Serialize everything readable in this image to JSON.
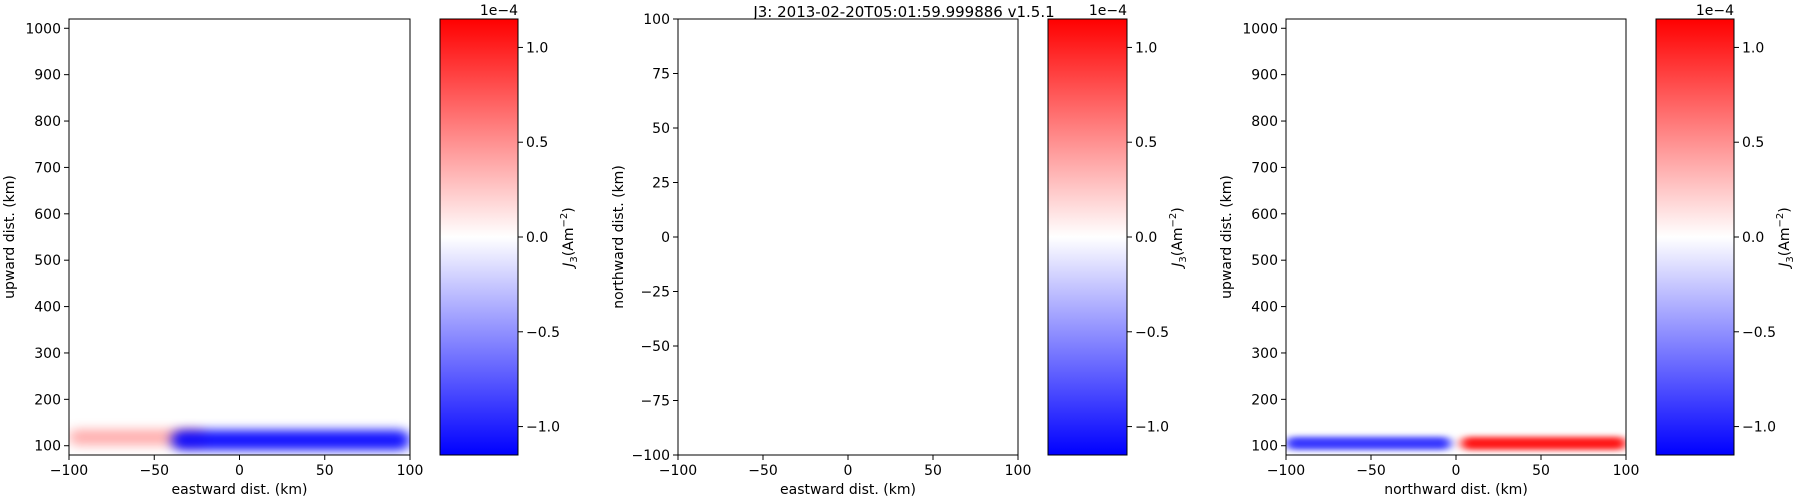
{
  "suptitle": "J3: 2013-02-20T05:01:59.999886  v1.5.1",
  "chart_data": [
    {
      "type": "heatmap",
      "xlabel": "eastward dist. (km)",
      "ylabel": "upward dist. (km)",
      "xlim": [
        -100,
        100
      ],
      "ylim": [
        80,
        1020
      ],
      "xticks": [
        -100,
        -50,
        0,
        50,
        100
      ],
      "yticks": [
        100,
        200,
        300,
        400,
        500,
        600,
        700,
        800,
        900,
        1000
      ],
      "colorbar": {
        "label": "J3(Am^-2)",
        "label_main": "J",
        "label_sub": "3",
        "label_paren": "(Am",
        "label_sup": "−2",
        "label_close": ")",
        "scale": "1e−4",
        "range": [
          -1.15,
          1.15
        ],
        "ticks": [
          "1.0",
          "0.5",
          "0.0",
          "−0.5",
          "−1.0"
        ],
        "tick_values": [
          1.0,
          0.5,
          0.0,
          -0.5,
          -1.0
        ]
      },
      "features": [
        {
          "kind": "positive",
          "x_range": [
            -100,
            -20
          ],
          "y_center": 118,
          "y_halfwidth": 18,
          "peak": 0.35
        },
        {
          "kind": "negative",
          "x_range": [
            -40,
            100
          ],
          "y_center": 112,
          "y_halfwidth": 22,
          "peak": -1.05
        }
      ]
    },
    {
      "type": "heatmap",
      "xlabel": "eastward dist. (km)",
      "ylabel": "northward dist. (km)",
      "xlim": [
        -100,
        100
      ],
      "ylim": [
        -100,
        100
      ],
      "xticks": [
        -100,
        -50,
        0,
        50,
        100
      ],
      "yticks": [
        -100,
        -75,
        -50,
        -25,
        0,
        25,
        50,
        75,
        100
      ],
      "colorbar": {
        "label": "J3(Am^-2)",
        "label_main": "J",
        "label_sub": "3",
        "label_paren": "(Am",
        "label_sup": "−2",
        "label_close": ")",
        "scale": "1e−4",
        "range": [
          -1.15,
          1.15
        ],
        "ticks": [
          "1.0",
          "0.5",
          "0.0",
          "−0.5",
          "−1.0"
        ],
        "tick_values": [
          1.0,
          0.5,
          0.0,
          -0.5,
          -1.0
        ]
      },
      "features": []
    },
    {
      "type": "heatmap",
      "xlabel": "northward dist. (km)",
      "ylabel": "upward dist. (km)",
      "xlim": [
        -100,
        100
      ],
      "ylim": [
        80,
        1020
      ],
      "xticks": [
        -100,
        -50,
        0,
        50,
        100
      ],
      "yticks": [
        100,
        200,
        300,
        400,
        500,
        600,
        700,
        800,
        900,
        1000
      ],
      "colorbar": {
        "label": "J3(Am^-2)",
        "label_main": "J",
        "label_sub": "3",
        "label_paren": "(Am",
        "label_sup": "−2",
        "label_close": ")",
        "scale": "1e−4",
        "range": [
          -1.15,
          1.15
        ],
        "ticks": [
          "1.0",
          "0.5",
          "0.0",
          "−0.5",
          "−1.0"
        ],
        "tick_values": [
          1.0,
          0.5,
          0.0,
          -0.5,
          -1.0
        ]
      },
      "features": [
        {
          "kind": "negative",
          "x_range": [
            -100,
            -3
          ],
          "y_center": 105,
          "y_halfwidth": 14,
          "peak": -0.9
        },
        {
          "kind": "positive",
          "x_range": [
            3,
            100
          ],
          "y_center": 105,
          "y_halfwidth": 14,
          "peak": 1.05
        }
      ]
    }
  ]
}
